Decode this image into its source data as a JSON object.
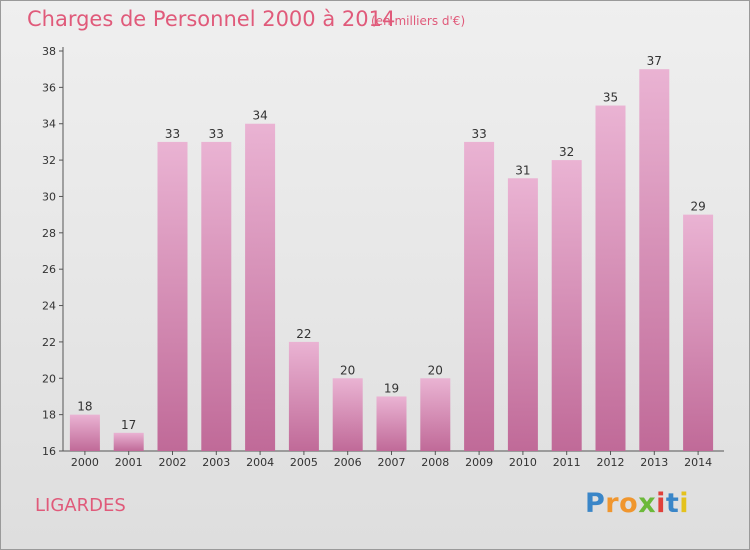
{
  "header": {
    "title": "Charges de Personnel 2000 à 2014",
    "subtitle": "(en milliers d'€)"
  },
  "footer": {
    "commune": "LIGARDES",
    "logo_text": "Proxiti",
    "logo_letters": [
      {
        "ch": "P",
        "color": "#3a86c8"
      },
      {
        "ch": "r",
        "color": "#f0962e"
      },
      {
        "ch": "o",
        "color": "#f0962e"
      },
      {
        "ch": "x",
        "color": "#6cb93a"
      },
      {
        "ch": "i",
        "color": "#e0403a"
      },
      {
        "ch": "t",
        "color": "#3a86c8"
      },
      {
        "ch": "i",
        "color": "#e4c21c"
      }
    ]
  },
  "chart_data": {
    "type": "bar",
    "title": "Charges de Personnel 2000 à 2014",
    "subtitle": "(en milliers d'€)",
    "categories": [
      "2000",
      "2001",
      "2002",
      "2003",
      "2004",
      "2005",
      "2006",
      "2007",
      "2008",
      "2009",
      "2010",
      "2011",
      "2012",
      "2013",
      "2014"
    ],
    "values": [
      18,
      17,
      33,
      33,
      34,
      22,
      20,
      19,
      20,
      33,
      31,
      32,
      35,
      37,
      29
    ],
    "ylim": [
      16,
      38
    ],
    "yticks": [
      16,
      18,
      20,
      22,
      24,
      26,
      28,
      30,
      32,
      34,
      36,
      38
    ],
    "grid": false,
    "colors": {
      "bar_light": "#eab3d3",
      "bar_dark": "#c06a98",
      "text": "#333333",
      "accent": "#e05a7a"
    }
  }
}
